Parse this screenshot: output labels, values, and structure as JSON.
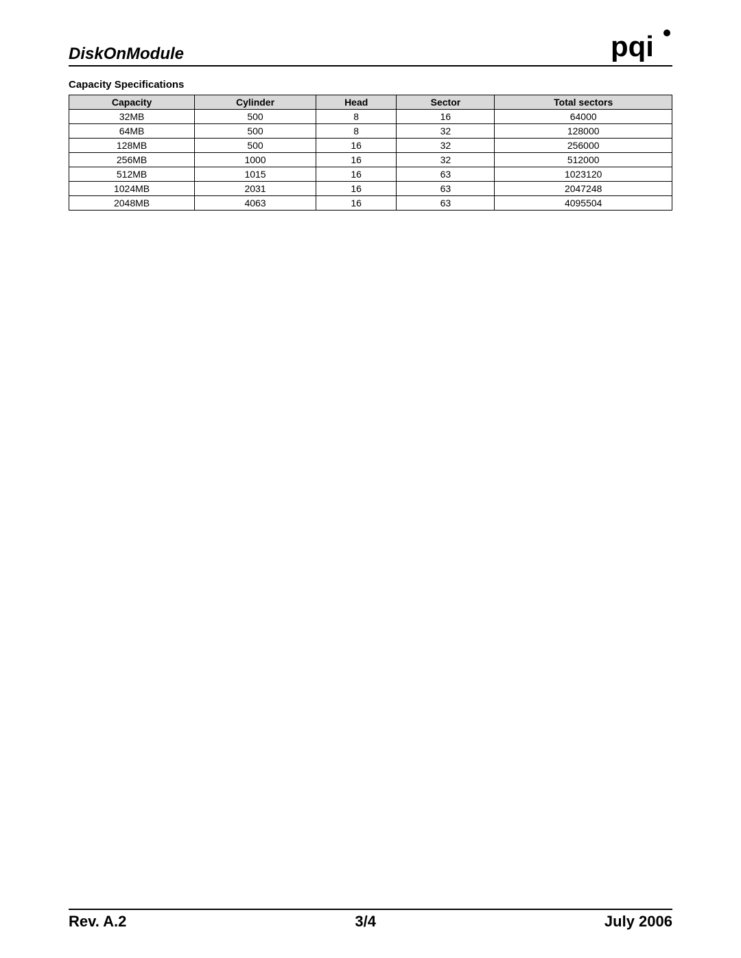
{
  "header": {
    "title": "DiskOnModule",
    "logo_text": "pqi",
    "logo_registered": "®"
  },
  "section": {
    "title": "Capacity Specifications"
  },
  "table": {
    "columns": [
      "Capacity",
      "Cylinder",
      "Head",
      "Sector",
      "Total sectors"
    ],
    "header_bg": "#d9d9d9",
    "border_color": "#000000",
    "rows": [
      [
        "32MB",
        "500",
        "8",
        "16",
        "64000"
      ],
      [
        "64MB",
        "500",
        "8",
        "32",
        "128000"
      ],
      [
        "128MB",
        "500",
        "16",
        "32",
        "256000"
      ],
      [
        "256MB",
        "1000",
        "16",
        "32",
        "512000"
      ],
      [
        "512MB",
        "1015",
        "16",
        "63",
        "1023120"
      ],
      [
        "1024MB",
        "2031",
        "16",
        "63",
        "2047248"
      ],
      [
        "2048MB",
        "4063",
        "16",
        "63",
        "4095504"
      ]
    ]
  },
  "footer": {
    "rev": "Rev. A.2",
    "page": "3/4",
    "date": "July 2006"
  },
  "colors": {
    "page_bg": "#ffffff",
    "text": "#000000",
    "rule": "#000000"
  }
}
